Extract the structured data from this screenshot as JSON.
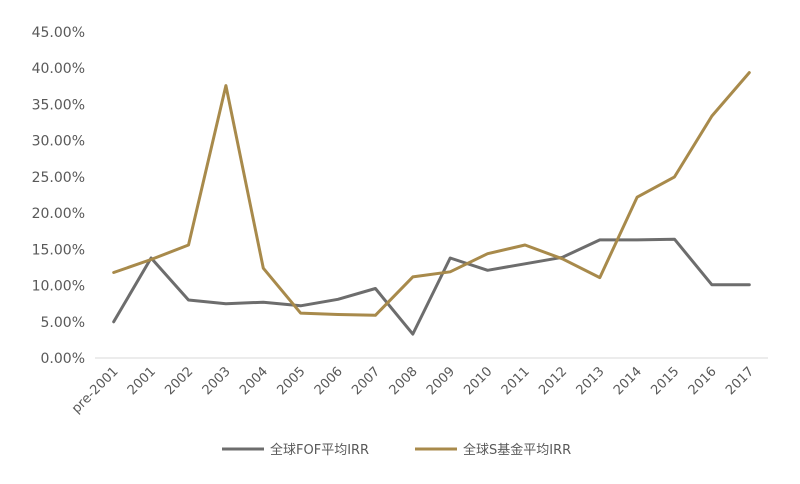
{
  "chart_data": {
    "type": "line",
    "categories": [
      "pre-2001",
      "2001",
      "2002",
      "2003",
      "2004",
      "2005",
      "2006",
      "2007",
      "2008",
      "2009",
      "2010",
      "2011",
      "2012",
      "2013",
      "2014",
      "2015",
      "2016",
      "2017"
    ],
    "y_ticks": [
      "0.00%",
      "5.00%",
      "10.00%",
      "15.00%",
      "20.00%",
      "25.00%",
      "30.00%",
      "35.00%",
      "40.00%",
      "45.00%"
    ],
    "ylim": [
      0,
      45
    ],
    "grid": false,
    "legend_position": "bottom",
    "series": [
      {
        "name": "全球FOF平均IRR",
        "color": "#6d6d6d",
        "values": [
          5.0,
          13.8,
          8.0,
          7.5,
          7.7,
          7.2,
          8.1,
          9.6,
          3.3,
          13.8,
          12.1,
          13.0,
          13.9,
          16.3,
          16.3,
          16.4,
          10.1,
          10.1
        ]
      },
      {
        "name": "全球S基金平均IRR",
        "color": "#a88a4b",
        "values": [
          11.8,
          13.6,
          15.6,
          37.6,
          12.4,
          6.2,
          6.0,
          5.9,
          11.2,
          11.9,
          14.4,
          15.6,
          13.7,
          11.1,
          22.2,
          25.0,
          33.4,
          39.4
        ]
      }
    ]
  }
}
